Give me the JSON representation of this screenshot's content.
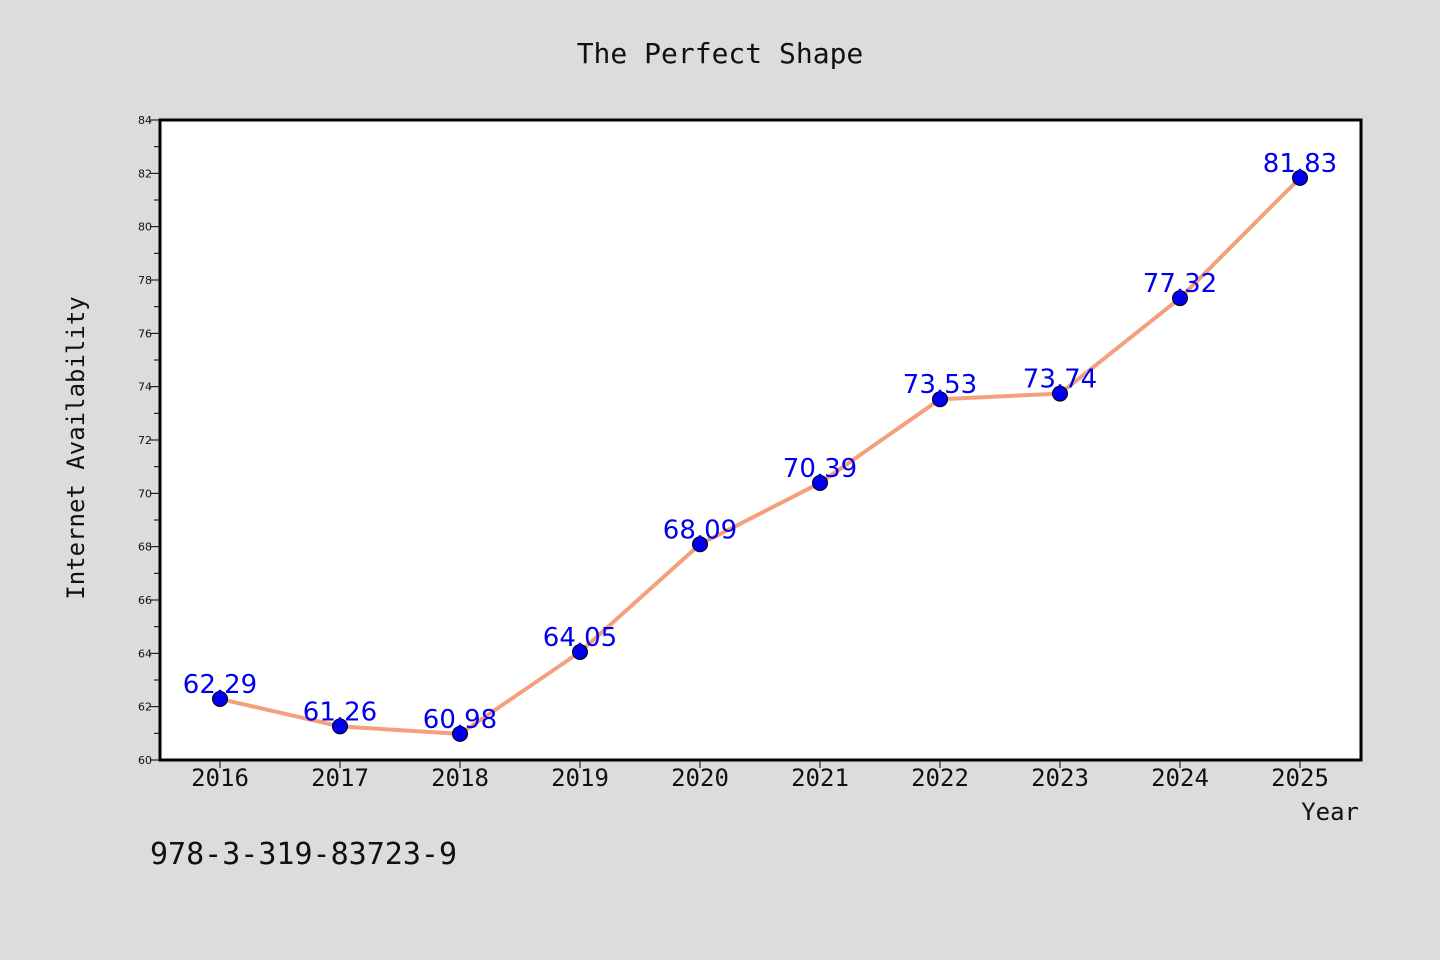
{
  "colors": {
    "background": "#dcdcdc",
    "plot_background": "#ffffff",
    "line": "#f4a07c",
    "marker": "#0000ee",
    "data_label": "#0000ee"
  },
  "footnote": "978-3-319-83723-9",
  "chart_data": {
    "type": "line",
    "title": "The Perfect Shape",
    "xlabel": "Year",
    "ylabel": "Internet Availability",
    "categories": [
      "2016",
      "2017",
      "2018",
      "2019",
      "2020",
      "2021",
      "2022",
      "2023",
      "2024",
      "2025"
    ],
    "series": [
      {
        "values": [
          62.29,
          61.26,
          60.98,
          64.05,
          68.09,
          70.39,
          73.53,
          73.74,
          77.32,
          81.83
        ],
        "labels": [
          "62.29",
          "61.26",
          "60.98",
          "64.05",
          "68.09",
          "70.39",
          "73.53",
          "73.74",
          "77.32",
          "81.83"
        ]
      }
    ],
    "ylim": [
      60,
      84
    ],
    "yticks": [
      "60",
      "62",
      "64",
      "66",
      "68",
      "70",
      "72",
      "74",
      "76",
      "78",
      "80",
      "82",
      "84"
    ],
    "grid": false,
    "legend": false
  }
}
